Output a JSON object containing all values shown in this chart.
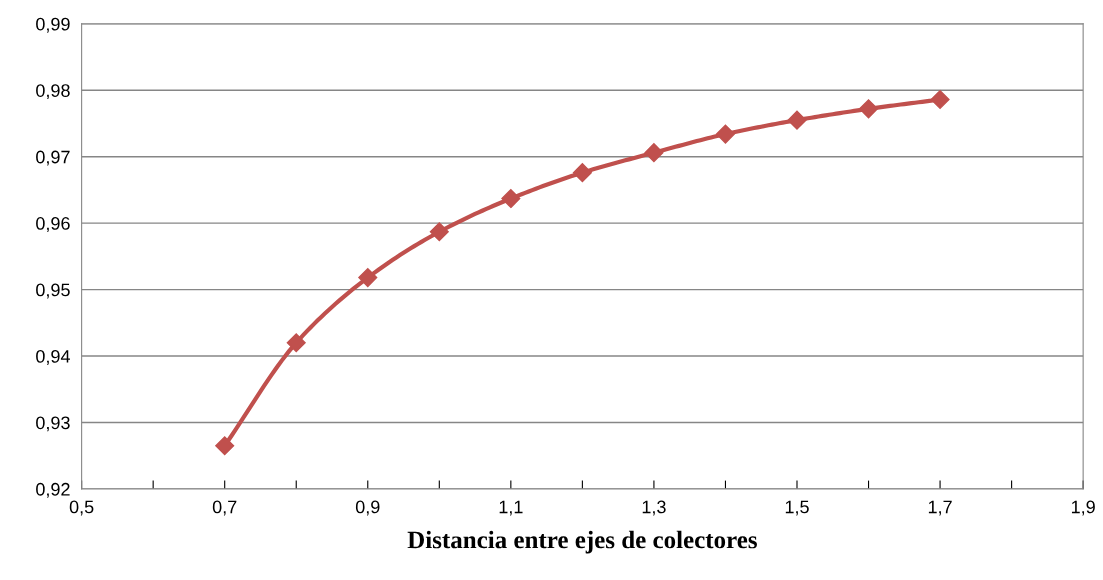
{
  "chart_data": {
    "type": "line",
    "xlabel": "Distancia entre ejes de colectores",
    "x": [
      0.7,
      0.8,
      0.9,
      1.0,
      1.1,
      1.2,
      1.3,
      1.4,
      1.5,
      1.6,
      1.7
    ],
    "series": [
      {
        "color": "#c0504d",
        "values": [
          0.9265,
          0.942,
          0.9518,
          0.9587,
          0.9637,
          0.9676,
          0.9706,
          0.9734,
          0.9755,
          0.9772,
          0.9786
        ]
      }
    ],
    "xlim": [
      0.5,
      1.9
    ],
    "xticks": [
      {
        "value": 0.5,
        "label": "0,5"
      },
      {
        "value": 0.6,
        "label": null
      },
      {
        "value": 0.7,
        "label": "0,7"
      },
      {
        "value": 0.8,
        "label": null
      },
      {
        "value": 0.9,
        "label": "0,9"
      },
      {
        "value": 1.0,
        "label": null
      },
      {
        "value": 1.1,
        "label": "1,1"
      },
      {
        "value": 1.2,
        "label": null
      },
      {
        "value": 1.3,
        "label": "1,3"
      },
      {
        "value": 1.4,
        "label": null
      },
      {
        "value": 1.5,
        "label": "1,5"
      },
      {
        "value": 1.6,
        "label": null
      },
      {
        "value": 1.7,
        "label": "1,7"
      },
      {
        "value": 1.8,
        "label": null
      },
      {
        "value": 1.9,
        "label": "1,9"
      }
    ],
    "ylim": [
      0.92,
      0.99
    ],
    "yticks": [
      {
        "value": 0.92,
        "label": "0,92"
      },
      {
        "value": 0.93,
        "label": "0,93"
      },
      {
        "value": 0.94,
        "label": "0,94"
      },
      {
        "value": 0.95,
        "label": "0,95"
      },
      {
        "value": 0.96,
        "label": "0,96"
      },
      {
        "value": 0.97,
        "label": "0,97"
      },
      {
        "value": 0.98,
        "label": "0,98"
      },
      {
        "value": 0.99,
        "label": "0,99"
      }
    ],
    "grid": "y",
    "marker": "diamond",
    "line_style": "solid"
  }
}
